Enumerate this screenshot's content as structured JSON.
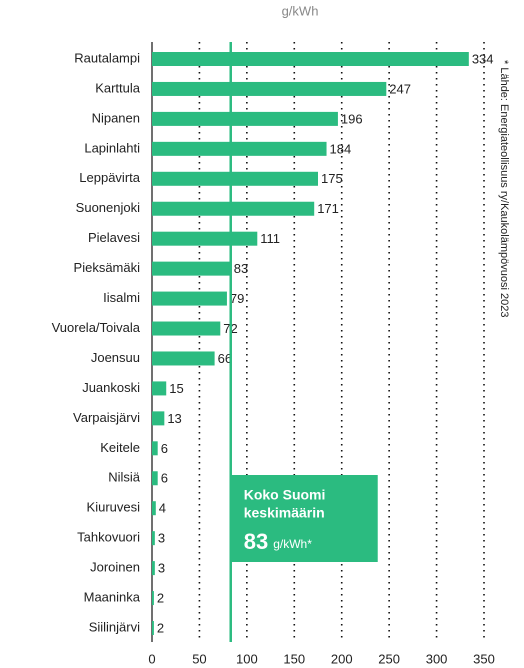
{
  "chart_data": {
    "type": "hbar",
    "x_label": "g/kWh",
    "source": "* Lähde: Energiateollisuus ry/Kaukolämpövuosi 2023",
    "categories": [
      "Rautalampi",
      "Karttula",
      "Nipanen",
      "Lapinlahti",
      "Leppävirta",
      "Suonenjoki",
      "Pielavesi",
      "Pieksämäki",
      "Iisalmi",
      "Vuorela/Toivala",
      "Joensuu",
      "Juankoski",
      "Varpaisjärvi",
      "Keitele",
      "Nilsiä",
      "Kiuruvesi",
      "Tahkovuori",
      "Joroinen",
      "Maaninka",
      "Siilinjärvi"
    ],
    "values": [
      334,
      247,
      196,
      184,
      175,
      171,
      111,
      83,
      79,
      72,
      66,
      15,
      13,
      6,
      6,
      4,
      3,
      3,
      2,
      2
    ],
    "color": "#2bbb80",
    "xlim": [
      0,
      350
    ],
    "xticks": [
      0,
      50,
      100,
      150,
      200,
      250,
      300,
      350
    ],
    "grid": true,
    "reference": {
      "value": 83,
      "label_lines": [
        "Koko Suomi",
        "keskimäärin"
      ],
      "unit": "g/kWh*"
    }
  }
}
